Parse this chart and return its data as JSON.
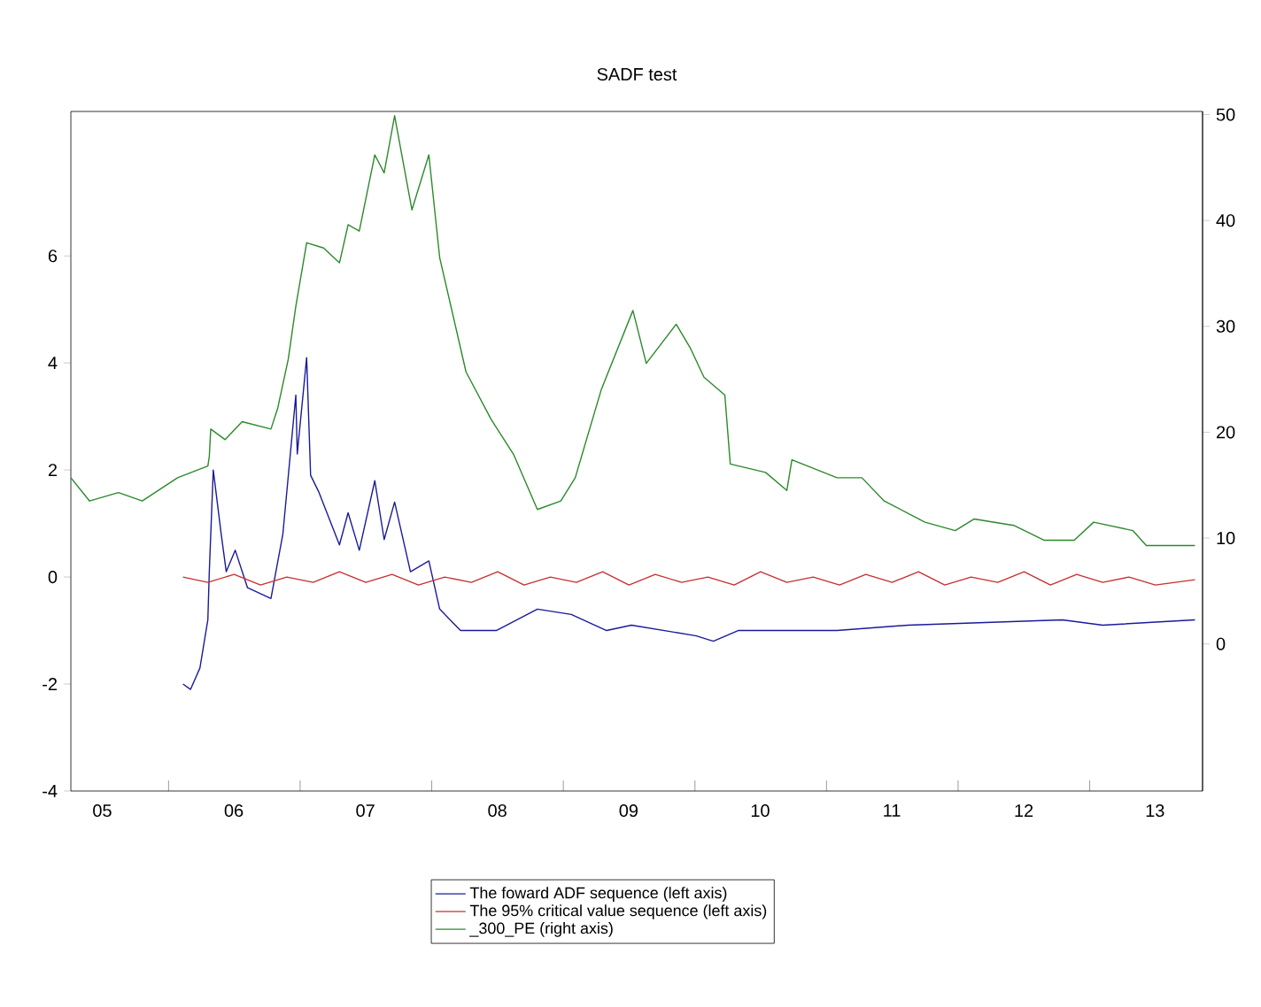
{
  "chart_data": {
    "type": "line",
    "title": "SADF test",
    "xlim": [
      "2005-04-05",
      "2013-11-10"
    ],
    "xticks": [
      {
        "value": "2005-07-01",
        "label": "05"
      },
      {
        "value": "2006-01-01",
        "label": null
      },
      {
        "value": "2006-07-01",
        "label": "06"
      },
      {
        "value": "2007-01-01",
        "label": null
      },
      {
        "value": "2007-07-01",
        "label": "07"
      },
      {
        "value": "2008-01-01",
        "label": null
      },
      {
        "value": "2008-07-01",
        "label": "08"
      },
      {
        "value": "2009-01-01",
        "label": null
      },
      {
        "value": "2009-07-01",
        "label": "09"
      },
      {
        "value": "2010-01-01",
        "label": null
      },
      {
        "value": "2010-07-01",
        "label": "10"
      },
      {
        "value": "2011-01-01",
        "label": null
      },
      {
        "value": "2011-07-01",
        "label": "11"
      },
      {
        "value": "2012-01-01",
        "label": null
      },
      {
        "value": "2012-07-01",
        "label": "12"
      },
      {
        "value": "2013-01-01",
        "label": null
      },
      {
        "value": "2013-07-01",
        "label": "13"
      }
    ],
    "ylim": [
      -4,
      8.7
    ],
    "yticks": [
      -4,
      -2,
      0,
      2,
      4,
      6
    ],
    "y2lim": [
      -13.9,
      50.3
    ],
    "y2ticks": [
      0,
      10,
      20,
      30,
      40,
      50
    ],
    "legend": "bottom",
    "series": [
      {
        "name": "The foward ADF sequence (left axis)",
        "color": "#1a1a9a",
        "x": [
          "2006-02-10",
          "2006-03-03",
          "2006-03-29",
          "2006-04-20",
          "2006-04-24",
          "2006-05-05",
          "2006-05-27",
          "2006-06-10",
          "2006-07-05",
          "2006-08-08",
          "2006-10-12",
          "2006-11-14",
          "2006-12-20",
          "2006-12-24",
          "2007-01-19",
          "2007-01-30",
          "2007-02-21",
          "2007-04-20",
          "2007-05-14",
          "2007-06-14",
          "2007-07-27",
          "2007-08-22",
          "2007-09-20",
          "2007-11-03",
          "2007-12-24",
          "2008-01-23",
          "2008-03-21",
          "2008-06-28",
          "2008-10-20",
          "2009-01-23",
          "2009-05-01",
          "2009-07-09",
          "2010-01-05",
          "2010-02-21",
          "2010-05-01",
          "2011-01-30",
          "2011-08-15",
          "2012-10-16",
          "2013-02-06",
          "2013-10-20"
        ],
        "values": [
          -2.0,
          -2.1,
          -1.7,
          -0.8,
          0.1,
          2.0,
          0.8,
          0.1,
          0.5,
          -0.2,
          -0.4,
          0.8,
          3.4,
          2.3,
          4.1,
          1.9,
          1.6,
          0.6,
          1.2,
          0.5,
          1.8,
          0.7,
          1.4,
          0.1,
          0.3,
          -0.6,
          -1.0,
          -1.0,
          -0.6,
          -0.7,
          -1.0,
          -0.9,
          -1.1,
          -1.2,
          -1.0,
          -1.0,
          -0.9,
          -0.8,
          -0.9,
          -0.8
        ]
      },
      {
        "name": "The 95% critical value sequence (left axis)",
        "color": "#c83030",
        "x": [
          "2006-02-10",
          "2006-04-20",
          "2006-07-02",
          "2006-09-13",
          "2006-11-25",
          "2007-02-06",
          "2007-04-20",
          "2007-07-02",
          "2007-09-13",
          "2007-11-25",
          "2008-02-06",
          "2008-04-20",
          "2008-07-02",
          "2008-09-13",
          "2008-11-25",
          "2009-02-06",
          "2009-04-20",
          "2009-07-02",
          "2009-09-13",
          "2009-11-25",
          "2010-02-06",
          "2010-04-20",
          "2010-07-02",
          "2010-09-13",
          "2010-11-25",
          "2011-02-06",
          "2011-04-20",
          "2011-07-02",
          "2011-09-13",
          "2011-11-25",
          "2012-02-06",
          "2012-04-20",
          "2012-07-02",
          "2012-09-13",
          "2012-11-25",
          "2013-02-06",
          "2013-04-20",
          "2013-07-02",
          "2013-10-20"
        ],
        "values": [
          0.0,
          -0.1,
          0.05,
          -0.15,
          0.0,
          -0.1,
          0.1,
          -0.1,
          0.05,
          -0.15,
          0.0,
          -0.1,
          0.1,
          -0.15,
          0.0,
          -0.1,
          0.1,
          -0.15,
          0.05,
          -0.1,
          0.0,
          -0.15,
          0.1,
          -0.1,
          0.0,
          -0.15,
          0.05,
          -0.1,
          0.1,
          -0.15,
          0.0,
          -0.1,
          0.1,
          -0.15,
          0.05,
          -0.1,
          0.0,
          -0.15,
          -0.05
        ]
      },
      {
        "name": "_300_PE (right axis)",
        "color": "#2a8a2a",
        "axis": "y2",
        "x": [
          "2005-04-05",
          "2005-05-27",
          "2005-08-15",
          "2005-10-20",
          "2006-01-26",
          "2006-04-20",
          "2006-04-24",
          "2006-04-28",
          "2006-06-07",
          "2006-07-24",
          "2006-10-12",
          "2006-10-31",
          "2006-11-29",
          "2006-12-20",
          "2007-01-19",
          "2007-03-07",
          "2007-04-20",
          "2007-05-14",
          "2007-06-14",
          "2007-07-27",
          "2007-08-22",
          "2007-09-20",
          "2007-11-07",
          "2007-12-24",
          "2008-01-23",
          "2008-04-05",
          "2008-06-14",
          "2008-08-15",
          "2008-10-20",
          "2008-12-24",
          "2009-02-03",
          "2009-04-16",
          "2009-07-13",
          "2009-08-19",
          "2009-11-10",
          "2009-12-20",
          "2010-01-26",
          "2010-03-25",
          "2010-04-09",
          "2010-07-16",
          "2010-09-13",
          "2010-09-27",
          "2011-01-30",
          "2011-04-09",
          "2011-06-10",
          "2011-10-01",
          "2011-12-24",
          "2012-02-14",
          "2012-06-03",
          "2012-08-26",
          "2012-11-18",
          "2013-01-12",
          "2013-05-01",
          "2013-06-07",
          "2013-10-20"
        ],
        "values": [
          15.7,
          13.5,
          14.3,
          13.5,
          15.7,
          16.8,
          17.7,
          20.3,
          19.3,
          21.0,
          20.3,
          22.3,
          26.9,
          31.9,
          37.9,
          37.4,
          36.0,
          39.6,
          39.0,
          46.2,
          44.5,
          49.9,
          41.0,
          46.2,
          36.5,
          25.7,
          21.2,
          17.9,
          12.7,
          13.5,
          15.7,
          24.0,
          31.5,
          26.5,
          30.2,
          27.9,
          25.2,
          23.5,
          17.0,
          16.2,
          14.5,
          17.4,
          15.7,
          15.7,
          13.5,
          11.5,
          10.7,
          11.8,
          11.2,
          9.8,
          9.8,
          11.5,
          10.7,
          9.3,
          9.3
        ]
      }
    ]
  }
}
